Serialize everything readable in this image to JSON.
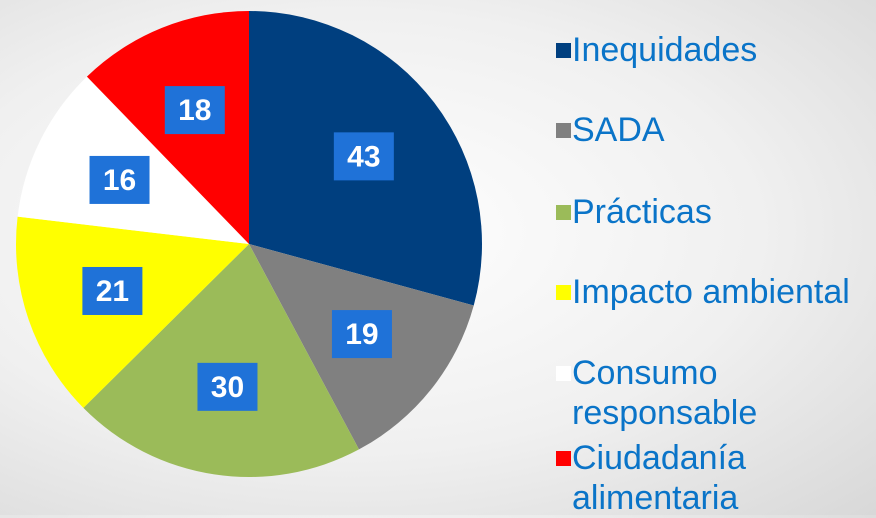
{
  "chart_data": {
    "type": "pie",
    "categories": [
      "Inequidades",
      "SADA",
      "Prácticas",
      "Impacto ambiental",
      "Consumo responsable",
      "Ciudadanía alimentaria"
    ],
    "values": [
      43,
      19,
      30,
      21,
      16,
      18
    ],
    "colors": [
      "#003f7f",
      "#808080",
      "#9bbb59",
      "#ffff00",
      "#ffffff",
      "#ff0000"
    ],
    "legend": "right"
  }
}
